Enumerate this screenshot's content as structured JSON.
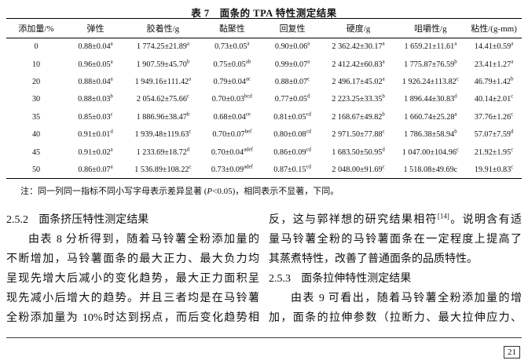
{
  "page": {
    "background": "#ffffff",
    "text_color": "#111111"
  },
  "table": {
    "title": "表 7　面条的 TPA 特性测定结果",
    "headers": [
      "添加量/%",
      "弹性",
      "胶着性/g",
      "黏聚性",
      "回复性",
      "硬度/g",
      "咀嚼性/g",
      "粘性/(g-mm)"
    ],
    "rows": [
      [
        {
          "t": "0"
        },
        {
          "t": "0.88±0.04",
          "s": "a"
        },
        {
          "t": "1 774.25±21.89",
          "s": "a"
        },
        {
          "t": "0.73±0.05",
          "s": "a"
        },
        {
          "t": "0.90±0.06",
          "s": "a"
        },
        {
          "t": "2 362.42±30.17",
          "s": "a"
        },
        {
          "t": "1 659.21±11.61",
          "s": "a"
        },
        {
          "t": "14.41±0.59",
          "s": "a"
        }
      ],
      [
        {
          "t": "10"
        },
        {
          "t": "0.96±0.05",
          "s": "a"
        },
        {
          "t": "1 907.59±45.70",
          "s": "b"
        },
        {
          "t": "0.75±0.05",
          "s": "ab"
        },
        {
          "t": "0.99±0.07",
          "s": "a"
        },
        {
          "t": "2 412.42±60.83",
          "s": "a"
        },
        {
          "t": "1 775.87±76.59",
          "s": "b"
        },
        {
          "t": "23.41±1.27",
          "s": "a"
        }
      ],
      [
        {
          "t": "20"
        },
        {
          "t": "0.88±0.04",
          "s": "a"
        },
        {
          "t": "1 949.16±111.42",
          "s": "a"
        },
        {
          "t": "0.79±0.04",
          "s": "ac"
        },
        {
          "t": "0.88±0.07",
          "s": "c"
        },
        {
          "t": "2 496.17±45.02",
          "s": "a"
        },
        {
          "t": "1 926.24±113.82",
          "s": "c"
        },
        {
          "t": "46.79±1.42",
          "s": "b"
        }
      ],
      [
        {
          "t": "30"
        },
        {
          "t": "0.88±0.03",
          "s": "b"
        },
        {
          "t": "2 054.62±75.66",
          "s": "c"
        },
        {
          "t": "0.70±0.03",
          "s": "bcd"
        },
        {
          "t": "0.77±0.05",
          "s": "d"
        },
        {
          "t": "2 223.25±33.35",
          "s": "b"
        },
        {
          "t": "1 896.44±30.83",
          "s": "d"
        },
        {
          "t": "40.14±2.01",
          "s": "c"
        }
      ],
      [
        {
          "t": "35"
        },
        {
          "t": "0.85±0.03",
          "s": "c"
        },
        {
          "t": "1 886.96±38.47",
          "s": "b"
        },
        {
          "t": "0.68±0.04",
          "s": "ce"
        },
        {
          "t": "0.81±0.05",
          "s": "cd"
        },
        {
          "t": "2 168.67±49.82",
          "s": "b"
        },
        {
          "t": "1 660.74±25.28",
          "s": "a"
        },
        {
          "t": "37.76±1.26",
          "s": "c"
        }
      ],
      [
        {
          "t": "40"
        },
        {
          "t": "0.91±0.01",
          "s": "d"
        },
        {
          "t": "1 939.48±119.63",
          "s": "c"
        },
        {
          "t": "0.70±0.07",
          "s": "bef"
        },
        {
          "t": "0.80±0.08",
          "s": "cd"
        },
        {
          "t": "2 971.50±77.88",
          "s": "c"
        },
        {
          "t": "1 786.38±58.94",
          "s": "b"
        },
        {
          "t": "57.07±7.59",
          "s": "d"
        }
      ],
      [
        {
          "t": "45"
        },
        {
          "t": "0.91±0.02",
          "s": "a"
        },
        {
          "t": "1 233.69±18.72",
          "s": "d"
        },
        {
          "t": "0.70±0.04",
          "s": "adef"
        },
        {
          "t": "0.86±0.09",
          "s": "cd"
        },
        {
          "t": "1 683.50±50.95",
          "s": "d"
        },
        {
          "t": "1 047.00±104.96",
          "s": "c"
        },
        {
          "t": "21.92±1.95",
          "s": "c"
        }
      ],
      [
        {
          "t": "50"
        },
        {
          "t": "0.86±0.07",
          "s": "a"
        },
        {
          "t": "1 536.89±108.22",
          "s": "c"
        },
        {
          "t": "0.73±0.09",
          "s": "adef"
        },
        {
          "t": "0.87±0.15",
          "s": "cd"
        },
        {
          "t": "2 048.00±91.69",
          "s": "c"
        },
        {
          "t": "1 518.08±49.69c"
        },
        {
          "t": "19.91±0.83",
          "s": "c"
        }
      ]
    ],
    "note": {
      "prefix": "注：同一列同一指标不同小写字母表示差异显著 (",
      "italic": "P",
      "suffix": "<0.05)，相同表示不显著，下同。"
    }
  },
  "body": {
    "left_column": {
      "lines": [
        {
          "style": "heading",
          "number": "2.5.2",
          "text": "面条挤压特性测定结果"
        },
        {
          "style": "indent-full",
          "text": "由表 8 分析得到，随着马铃薯全粉添加量的"
        },
        {
          "style": "full",
          "text": "不断增加，马铃薯面条的最大正力、最大负力均"
        },
        {
          "style": "full",
          "text": "呈现先增大后减小的变化趋势，最大正力面积呈"
        },
        {
          "style": "full",
          "text": "现先减小后增大的趋势。并且三者均是在马铃薯"
        },
        {
          "style": "full",
          "text": "全粉添加量为 10%时达到拐点，而后变化趋势相"
        }
      ]
    },
    "right_column": {
      "lines": [
        {
          "style": "full",
          "text": "反，这与郭祥想的研究结果相符",
          "sup": "[14]",
          "text2": "。说明含有适"
        },
        {
          "style": "full",
          "text": "量马铃薯全粉的马铃薯面条在一定程度上提高了"
        },
        {
          "style": "plain",
          "text": "其蒸煮特性，改善了普通面条的品质特性。"
        },
        {
          "style": "heading",
          "number": "2.5.3",
          "text": "面条拉伸特性测定结果"
        },
        {
          "style": "indent-full",
          "text": "由表 9 可看出，随着马铃薯全粉添加量的增"
        },
        {
          "style": "full",
          "text": "加，面条的拉伸参数（拉断力、最大拉伸应力、"
        }
      ]
    }
  },
  "footer": {
    "page_number": "21"
  }
}
